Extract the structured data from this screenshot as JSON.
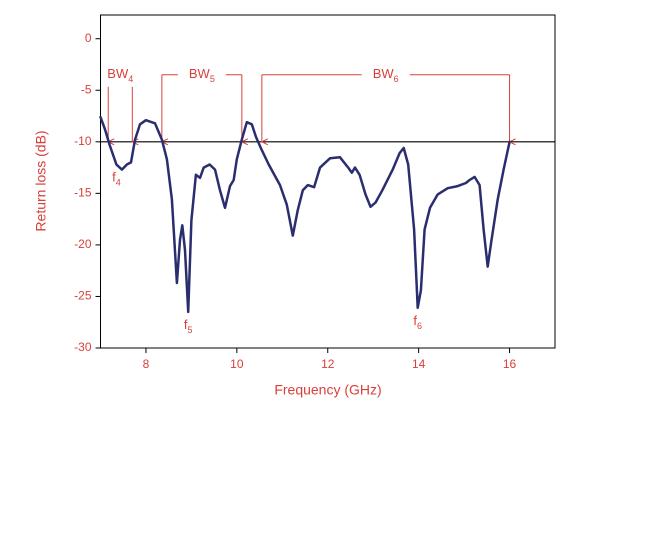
{
  "chart_data": {
    "type": "line",
    "x_label": "Frequency (GHz)",
    "y_label": "Return loss (dB)",
    "xlim": [
      7,
      17
    ],
    "ylim": [
      -30,
      2.3
    ],
    "xticks": [
      8,
      10,
      12,
      14,
      16
    ],
    "yticks": [
      0,
      -5,
      -10,
      -15,
      -20,
      -25,
      -30
    ],
    "reference_line": -10,
    "label_color": "#d8403a",
    "series": [
      {
        "color": "#2a2e6e",
        "x": [
          7.0,
          7.1,
          7.2,
          7.35,
          7.47,
          7.58,
          7.67,
          7.76,
          7.87,
          8.0,
          8.2,
          8.35,
          8.46,
          8.57,
          8.68,
          8.75,
          8.8,
          8.86,
          8.93,
          9.0,
          9.1,
          9.19,
          9.27,
          9.4,
          9.52,
          9.63,
          9.74,
          9.85,
          9.93,
          10.0,
          10.11,
          10.22,
          10.33,
          10.42,
          10.55,
          10.7,
          10.95,
          11.1,
          11.23,
          11.34,
          11.45,
          11.56,
          11.7,
          11.83,
          12.05,
          12.27,
          12.45,
          12.53,
          12.6,
          12.7,
          12.83,
          12.94,
          13.05,
          13.2,
          13.43,
          13.58,
          13.67,
          13.77,
          13.9,
          13.98,
          14.05,
          14.13,
          14.25,
          14.42,
          14.64,
          14.86,
          15.04,
          15.12,
          15.23,
          15.34,
          15.43,
          15.52,
          15.6,
          15.74,
          15.87,
          16.0
        ],
        "values": [
          -7.6,
          -8.8,
          -10.3,
          -12.2,
          -12.7,
          -12.2,
          -12.0,
          -9.8,
          -8.3,
          -7.9,
          -8.2,
          -9.8,
          -11.7,
          -15.6,
          -23.7,
          -19.5,
          -18.1,
          -20.5,
          -26.5,
          -17.6,
          -13.2,
          -13.5,
          -12.5,
          -12.2,
          -12.7,
          -14.7,
          -16.4,
          -14.3,
          -13.7,
          -11.7,
          -9.8,
          -8.1,
          -8.3,
          -9.5,
          -10.8,
          -12.2,
          -14.2,
          -16.1,
          -19.1,
          -16.6,
          -14.7,
          -14.2,
          -14.4,
          -12.5,
          -11.6,
          -11.5,
          -12.5,
          -13.0,
          -12.5,
          -13.2,
          -15.1,
          -16.3,
          -15.9,
          -14.7,
          -12.7,
          -11.1,
          -10.6,
          -12.2,
          -18.5,
          -26.1,
          -24.4,
          -18.5,
          -16.4,
          -15.1,
          -14.5,
          -14.3,
          -14.0,
          -13.7,
          -13.4,
          -14.2,
          -18.5,
          -22.1,
          -19.6,
          -15.6,
          -12.7,
          -10.0
        ]
      }
    ],
    "bands": [
      {
        "label": "BW",
        "sub": "4",
        "start": 7.17,
        "end": 7.7,
        "top": -3.5
      },
      {
        "label": "BW",
        "sub": "5",
        "start": 8.35,
        "end": 10.11,
        "top": -3.5
      },
      {
        "label": "BW",
        "sub": "6",
        "start": 10.55,
        "end": 16.0,
        "top": -3.5
      }
    ],
    "markers": [
      {
        "label": "f",
        "sub": "4",
        "x": 7.35,
        "y": -12.2
      },
      {
        "label": "f",
        "sub": "5",
        "x": 8.93,
        "y": -26.5
      },
      {
        "label": "f",
        "sub": "6",
        "x": 13.98,
        "y": -26.1
      }
    ]
  }
}
